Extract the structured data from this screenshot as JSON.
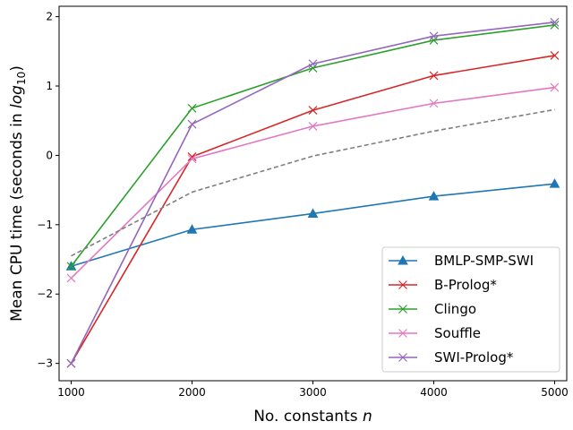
{
  "chart_data": {
    "type": "line",
    "xlabel_text": "No. constants ",
    "xlabel_var": "n",
    "ylabel_text": "Mean CPU time (seconds in ",
    "ylabel_log": "log",
    "ylabel_sub": "10",
    "ylabel_close": ")",
    "x": [
      1000,
      2000,
      3000,
      4000,
      5000
    ],
    "xlim": [
      900,
      5100
    ],
    "ylim": [
      -3.25,
      2.15
    ],
    "xticks": [
      1000,
      2000,
      3000,
      4000,
      5000
    ],
    "yticks": [
      -3,
      -2,
      -1,
      0,
      1,
      2
    ],
    "ytick_labels": [
      "−3",
      "−2",
      "−1",
      "0",
      "1",
      "2"
    ],
    "grid": false,
    "legend_position": "lower-right",
    "series": [
      {
        "name": "BMLP-SMP-SWI",
        "color": "#1f77b4",
        "marker": "triangle",
        "values": [
          -1.6,
          -1.07,
          -0.84,
          -0.59,
          -0.41
        ]
      },
      {
        "name": "B-Prolog*",
        "color": "#d62728",
        "marker": "x",
        "values": [
          -3.0,
          -0.02,
          0.65,
          1.15,
          1.44
        ]
      },
      {
        "name": "Clingo",
        "color": "#2ca02c",
        "marker": "x",
        "values": [
          -1.6,
          0.68,
          1.26,
          1.66,
          1.88
        ]
      },
      {
        "name": "Souffle",
        "color": "#e377c2",
        "marker": "x",
        "values": [
          -1.77,
          -0.05,
          0.42,
          0.75,
          0.98
        ]
      },
      {
        "name": "SWI-Prolog*",
        "color": "#9467bd",
        "marker": "x",
        "values": [
          -3.0,
          0.45,
          1.32,
          1.72,
          1.92
        ]
      },
      {
        "name": "",
        "color": "#7f7f7f",
        "marker": "none",
        "dashed": true,
        "values": [
          -1.45,
          -0.53,
          -0.01,
          0.35,
          0.66
        ]
      }
    ]
  }
}
